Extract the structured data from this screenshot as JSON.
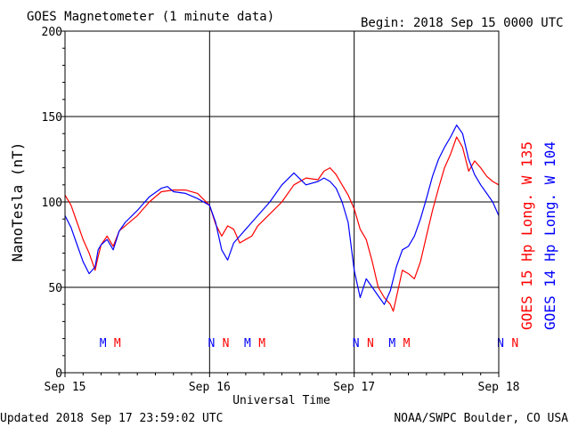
{
  "header": {
    "title": "GOES Magnetometer (1 minute data)",
    "begin": "Begin:  2018 Sep 15 0000 UTC"
  },
  "footer": {
    "updated": "Updated 2018 Sep 17 23:59:02 UTC",
    "credit": "NOAA/SWPC Boulder, CO USA"
  },
  "colors": {
    "goes15": "#ff0000",
    "goes14": "#0000ff",
    "axis": "#000000"
  },
  "chart_data": {
    "type": "line",
    "title": "GOES Magnetometer (1 minute data)",
    "xlabel": "Universal Time",
    "ylabel": "NanoTesla (nT)",
    "ylim": [
      0,
      200
    ],
    "yticks": [
      0,
      50,
      100,
      150,
      200
    ],
    "xlim": [
      0,
      72
    ],
    "x_unit": "hours since 2018 Sep 15 0000 UTC",
    "xticks": [
      {
        "x": 0,
        "label": "Sep 15"
      },
      {
        "x": 24,
        "label": "Sep 16"
      },
      {
        "x": 48,
        "label": "Sep 17"
      },
      {
        "x": 72,
        "label": "Sep 18"
      }
    ],
    "grid": true,
    "series": [
      {
        "name": "GOES 15 Hp  Long. W 135",
        "color": "#ff0000",
        "x": [
          0,
          1,
          2,
          3,
          4,
          5,
          5.5,
          6,
          7,
          8,
          9,
          10,
          12,
          14,
          16,
          18,
          20,
          22,
          24,
          25,
          26,
          27,
          28,
          29,
          30,
          31,
          32,
          34,
          36,
          38,
          40,
          42,
          43,
          44,
          45,
          46,
          47,
          48,
          49,
          50,
          51,
          52,
          53,
          54,
          54.5,
          55,
          56,
          57,
          58,
          59,
          60,
          61,
          62,
          63,
          64,
          65,
          66,
          67,
          68,
          69,
          70,
          71,
          72
        ],
        "y": [
          104,
          98,
          88,
          78,
          70,
          60,
          68,
          75,
          80,
          74,
          83,
          86,
          92,
          100,
          106,
          107,
          107,
          105,
          98,
          87,
          80,
          86,
          84,
          76,
          78,
          80,
          86,
          93,
          100,
          110,
          114,
          113,
          118,
          120,
          116,
          110,
          104,
          96,
          84,
          78,
          65,
          50,
          44,
          40,
          36,
          44,
          60,
          58,
          55,
          65,
          80,
          95,
          108,
          120,
          128,
          138,
          132,
          118,
          124,
          120,
          115,
          112,
          110
        ],
        "markers": [
          {
            "x": 8.7,
            "label": "M"
          },
          {
            "x": 26.7,
            "label": "N"
          }
        ]
      },
      {
        "name": "GOES 14 Hp  Long. W 104",
        "color": "#0000ff",
        "x": [
          0,
          1,
          2,
          3,
          4,
          5,
          5.5,
          6,
          7,
          8,
          9,
          10,
          12,
          14,
          16,
          17,
          18,
          20,
          22,
          24,
          25,
          26,
          27,
          28,
          29,
          30,
          31,
          32,
          34,
          36,
          38,
          40,
          42,
          43,
          44,
          45,
          46,
          47,
          48,
          49,
          50,
          51,
          52,
          53,
          54,
          55,
          56,
          57,
          58,
          59,
          60,
          61,
          62,
          63,
          64,
          65,
          66,
          67,
          68,
          69,
          70,
          71,
          72
        ],
        "y": [
          92,
          85,
          75,
          65,
          58,
          62,
          72,
          75,
          78,
          72,
          83,
          88,
          95,
          103,
          108,
          109,
          106,
          105,
          102,
          98,
          88,
          72,
          66,
          76,
          80,
          84,
          88,
          92,
          100,
          110,
          117,
          110,
          112,
          114,
          112,
          108,
          100,
          88,
          60,
          44,
          55,
          50,
          45,
          40,
          48,
          62,
          72,
          74,
          80,
          90,
          102,
          115,
          125,
          132,
          138,
          145,
          140,
          125,
          116,
          110,
          105,
          100,
          92
        ],
        "markers": [
          {
            "x": 6.3,
            "label": "M"
          },
          {
            "x": 24.3,
            "label": "N"
          }
        ]
      }
    ],
    "legend": [
      "GOES 15 Hp  Long. W 135",
      "GOES 14 Hp  Long. W 104"
    ],
    "legend_placement": "right-vertical"
  }
}
